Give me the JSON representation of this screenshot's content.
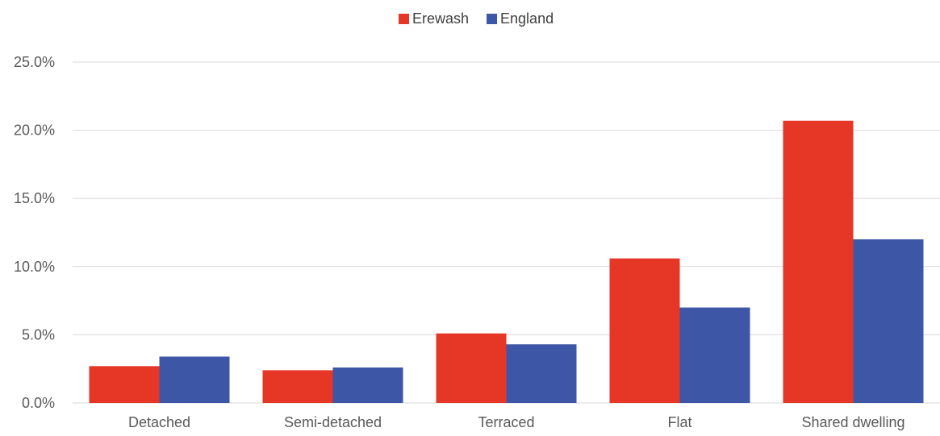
{
  "chart_data": {
    "type": "bar",
    "title": "",
    "xlabel": "",
    "ylabel": "",
    "categories": [
      "Detached",
      "Semi-detached",
      "Terraced",
      "Flat",
      "Shared dwelling"
    ],
    "series": [
      {
        "name": "Erewash",
        "color": "#e53626",
        "values": [
          2.7,
          2.4,
          5.1,
          10.6,
          20.7
        ]
      },
      {
        "name": "England",
        "color": "#3d56a6",
        "values": [
          3.4,
          2.6,
          4.3,
          7.0,
          12.0
        ]
      }
    ],
    "ylim": [
      0,
      25
    ],
    "yticks": [
      0,
      5,
      10,
      15,
      20,
      25
    ],
    "ytick_labels": [
      "0.0%",
      "5.0%",
      "10.0%",
      "15.0%",
      "20.0%",
      "25.0%"
    ],
    "grid": true,
    "legend_position": "top-center"
  }
}
